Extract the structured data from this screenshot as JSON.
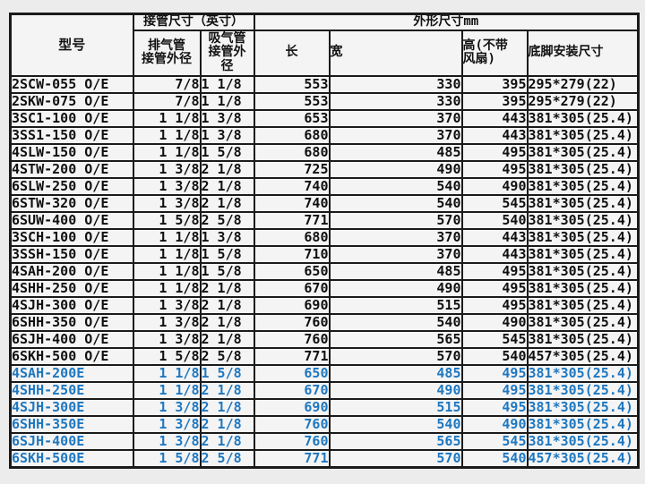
{
  "table": {
    "header": {
      "model": "型号",
      "pipe_group": "接管尺寸（英寸）",
      "dim_group": "外形尺寸mm",
      "discharge": "排气管\n接管外径",
      "suction": "吸气管\n接管外\n径",
      "length": "长",
      "width": "宽",
      "height": "高(不带\n风扇)",
      "mount": "底脚安装尺寸"
    },
    "colors": {
      "standard_text": "#101010",
      "e_series_text": "#1e77c0",
      "border": "#1a1a1a",
      "cell_bg": "#f4f4f4",
      "page_bg": "#ececec"
    },
    "rows": [
      {
        "model": "2SCW-055 O/E",
        "discharge_od": "7/8",
        "suction_od": "1 1/8",
        "length": "553",
        "width": "330",
        "height": "395",
        "mount": "295*279(22)",
        "highlight": false
      },
      {
        "model": "2SKW-075 O/E",
        "discharge_od": "7/8",
        "suction_od": "1 1/8",
        "length": "553",
        "width": "330",
        "height": "395",
        "mount": "295*279(22)",
        "highlight": false
      },
      {
        "model": "3SC1-100 O/E",
        "discharge_od": "1 1/8",
        "suction_od": "1 3/8",
        "length": "653",
        "width": "370",
        "height": "443",
        "mount": "381*305(25.4)",
        "highlight": false
      },
      {
        "model": "3SS1-150 O/E",
        "discharge_od": "1 1/8",
        "suction_od": "1 3/8",
        "length": "680",
        "width": "370",
        "height": "443",
        "mount": "381*305(25.4)",
        "highlight": false
      },
      {
        "model": "4SLW-150 O/E",
        "discharge_od": "1 1/8",
        "suction_od": "1 5/8",
        "length": "680",
        "width": "485",
        "height": "495",
        "mount": "381*305(25.4)",
        "highlight": false
      },
      {
        "model": "4STW-200 O/E",
        "discharge_od": "1 3/8",
        "suction_od": "2 1/8",
        "length": "725",
        "width": "490",
        "height": "495",
        "mount": "381*305(25.4)",
        "highlight": false
      },
      {
        "model": "6SLW-250 O/E",
        "discharge_od": "1 3/8",
        "suction_od": "2 1/8",
        "length": "740",
        "width": "540",
        "height": "490",
        "mount": "381*305(25.4)",
        "highlight": false
      },
      {
        "model": "6STW-320 O/E",
        "discharge_od": "1 3/8",
        "suction_od": "2 1/8",
        "length": "740",
        "width": "540",
        "height": "545",
        "mount": "381*305(25.4)",
        "highlight": false
      },
      {
        "model": "6SUW-400 O/E",
        "discharge_od": "1 5/8",
        "suction_od": "2 5/8",
        "length": "771",
        "width": "570",
        "height": "540",
        "mount": "381*305(25.4)",
        "highlight": false
      },
      {
        "model": "3SCH-100 O/E",
        "discharge_od": "1 1/8",
        "suction_od": "1 3/8",
        "length": "680",
        "width": "370",
        "height": "443",
        "mount": "381*305(25.4)",
        "highlight": false
      },
      {
        "model": "3SSH-150 O/E",
        "discharge_od": "1 1/8",
        "suction_od": "1 5/8",
        "length": "710",
        "width": "370",
        "height": "443",
        "mount": "381*305(25.4)",
        "highlight": false
      },
      {
        "model": "4SAH-200 O/E",
        "discharge_od": "1 1/8",
        "suction_od": "1 5/8",
        "length": "650",
        "width": "485",
        "height": "495",
        "mount": "381*305(25.4)",
        "highlight": false
      },
      {
        "model": "4SHH-250 O/E",
        "discharge_od": "1 1/8",
        "suction_od": "2 1/8",
        "length": "670",
        "width": "490",
        "height": "495",
        "mount": "381*305(25.4)",
        "highlight": false
      },
      {
        "model": "4SJH-300 O/E",
        "discharge_od": "1 3/8",
        "suction_od": "2 1/8",
        "length": "690",
        "width": "515",
        "height": "495",
        "mount": "381*305(25.4)",
        "highlight": false
      },
      {
        "model": "6SHH-350 O/E",
        "discharge_od": "1 3/8",
        "suction_od": "2 1/8",
        "length": "760",
        "width": "540",
        "height": "490",
        "mount": "381*305(25.4)",
        "highlight": false
      },
      {
        "model": "6SJH-400 O/E",
        "discharge_od": "1 3/8",
        "suction_od": "2 1/8",
        "length": "760",
        "width": "565",
        "height": "545",
        "mount": "381*305(25.4)",
        "highlight": false
      },
      {
        "model": "6SKH-500 O/E",
        "discharge_od": "1 5/8",
        "suction_od": "2 5/8",
        "length": "771",
        "width": "570",
        "height": "540",
        "mount": "457*305(25.4)",
        "highlight": false
      },
      {
        "model": "4SAH-200E",
        "discharge_od": "1 1/8",
        "suction_od": "1 5/8",
        "length": "650",
        "width": "485",
        "height": "495",
        "mount": "381*305(25.4)",
        "highlight": true
      },
      {
        "model": "4SHH-250E",
        "discharge_od": "1 1/8",
        "suction_od": "2 1/8",
        "length": "670",
        "width": "490",
        "height": "495",
        "mount": "381*305(25.4)",
        "highlight": true
      },
      {
        "model": "4SJH-300E",
        "discharge_od": "1 3/8",
        "suction_od": "2 1/8",
        "length": "690",
        "width": "515",
        "height": "495",
        "mount": "381*305(25.4)",
        "highlight": true
      },
      {
        "model": "6SHH-350E",
        "discharge_od": "1 3/8",
        "suction_od": "2 1/8",
        "length": "760",
        "width": "540",
        "height": "490",
        "mount": "381*305(25.4)",
        "highlight": true
      },
      {
        "model": "6SJH-400E",
        "discharge_od": "1 3/8",
        "suction_od": "2 1/8",
        "length": "760",
        "width": "565",
        "height": "545",
        "mount": "381*305(25.4)",
        "highlight": true
      },
      {
        "model": "6SKH-500E",
        "discharge_od": "1 5/8",
        "suction_od": "2 5/8",
        "length": "771",
        "width": "570",
        "height": "540",
        "mount": "457*305(25.4)",
        "highlight": true
      }
    ]
  }
}
